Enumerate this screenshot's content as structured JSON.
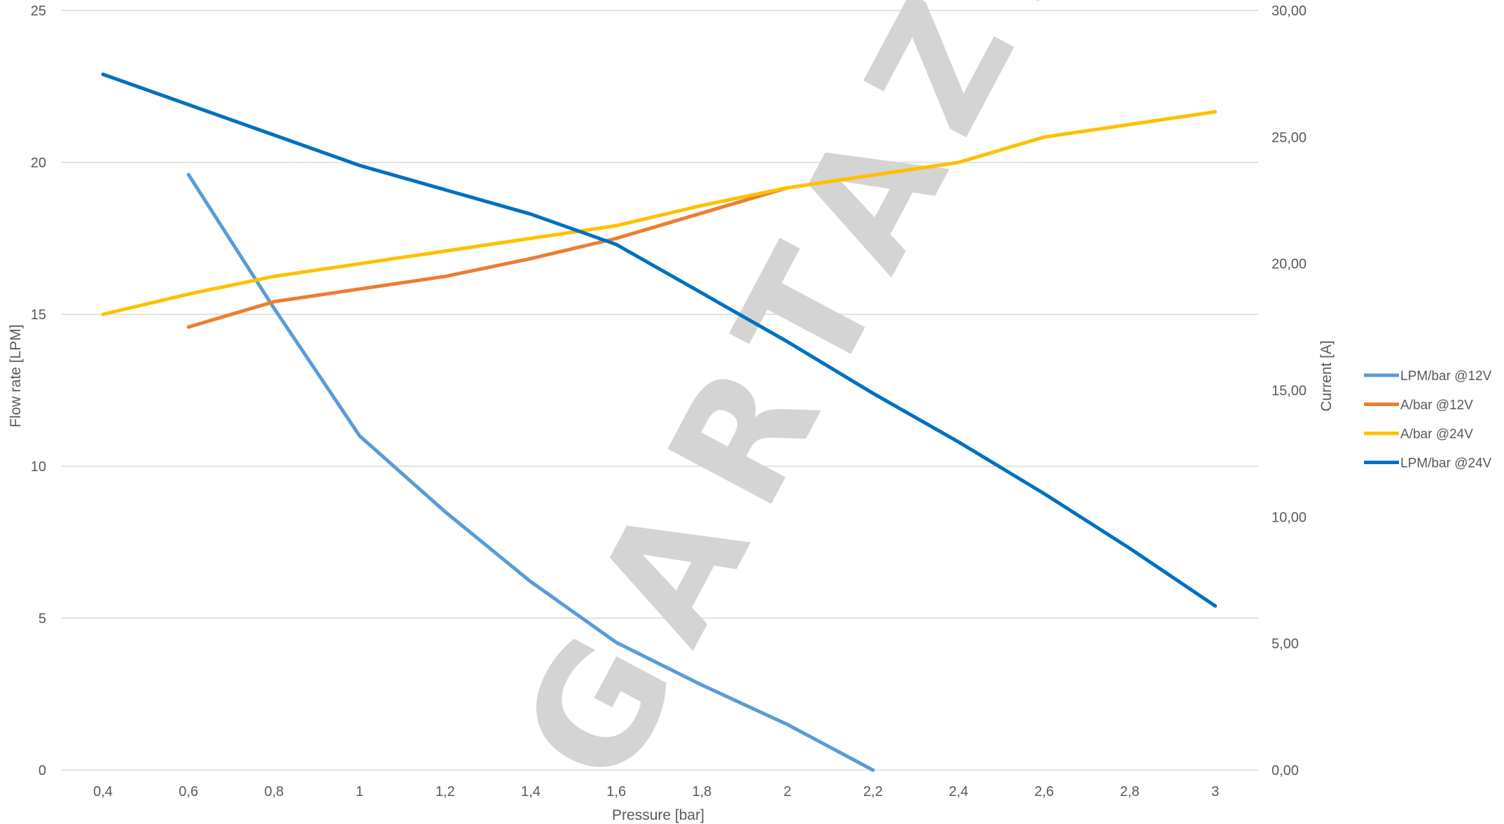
{
  "chart_data": {
    "type": "line",
    "xlabel": "Pressure [bar]",
    "ylabel_left": "Flow rate [LPM]",
    "ylabel_right": "Current [A]",
    "categories": [
      "0,4",
      "0,6",
      "0,8",
      "1",
      "1,2",
      "1,4",
      "1,6",
      "1,8",
      "2",
      "2,2",
      "2,4",
      "2,6",
      "2,8",
      "3"
    ],
    "x_values": [
      0.4,
      0.6,
      0.8,
      1.0,
      1.2,
      1.4,
      1.6,
      1.8,
      2.0,
      2.2,
      2.4,
      2.6,
      2.8,
      3.0
    ],
    "ylim_left": [
      0,
      25
    ],
    "ylim_right": [
      0,
      30
    ],
    "yticks_left": [
      "0",
      "5",
      "10",
      "15",
      "20",
      "25"
    ],
    "yticks_left_values": [
      0,
      5,
      10,
      15,
      20,
      25
    ],
    "yticks_right": [
      "0,00",
      "5,00",
      "10,00",
      "15,00",
      "20,00",
      "25,00",
      "30,00"
    ],
    "yticks_right_values": [
      0,
      5,
      10,
      15,
      20,
      25,
      30
    ],
    "grid": true,
    "legend_position": "right",
    "series": [
      {
        "name": "LPM/bar @12V",
        "axis": "left",
        "color": "#5B9BD5",
        "x": [
          0.6,
          0.8,
          1.0,
          1.2,
          1.4,
          1.6,
          1.8,
          2.0,
          2.2
        ],
        "y": [
          19.6,
          15.2,
          11.0,
          8.5,
          6.2,
          4.2,
          2.8,
          1.5,
          0.0
        ]
      },
      {
        "name": "A/bar @12V",
        "axis": "right",
        "color": "#ED7D31",
        "x": [
          0.6,
          0.8,
          1.0,
          1.2,
          1.4,
          1.6,
          1.8,
          2.0
        ],
        "y": [
          17.5,
          18.5,
          19.0,
          19.5,
          20.2,
          21.0,
          22.0,
          23.0
        ]
      },
      {
        "name": "A/bar @24V",
        "axis": "right",
        "color": "#FFC000",
        "x": [
          0.4,
          0.6,
          0.8,
          1.0,
          1.2,
          1.4,
          1.6,
          1.8,
          2.0,
          2.2,
          2.4,
          2.6,
          2.8,
          3.0
        ],
        "y": [
          18.0,
          18.8,
          19.5,
          20.0,
          20.5,
          21.0,
          21.5,
          22.3,
          23.0,
          23.5,
          24.0,
          25.0,
          25.5,
          26.0
        ]
      },
      {
        "name": "LPM/bar @24V",
        "axis": "left",
        "color": "#0070C0",
        "x": [
          0.4,
          0.6,
          0.8,
          1.0,
          1.2,
          1.4,
          1.6,
          1.8,
          2.0,
          2.2,
          2.4,
          2.6,
          2.8,
          3.0
        ],
        "y": [
          22.9,
          21.9,
          20.9,
          19.9,
          19.1,
          18.3,
          17.3,
          15.7,
          14.1,
          12.4,
          10.8,
          9.1,
          7.3,
          5.4
        ]
      }
    ],
    "watermark": "GARTAZ.RU"
  }
}
